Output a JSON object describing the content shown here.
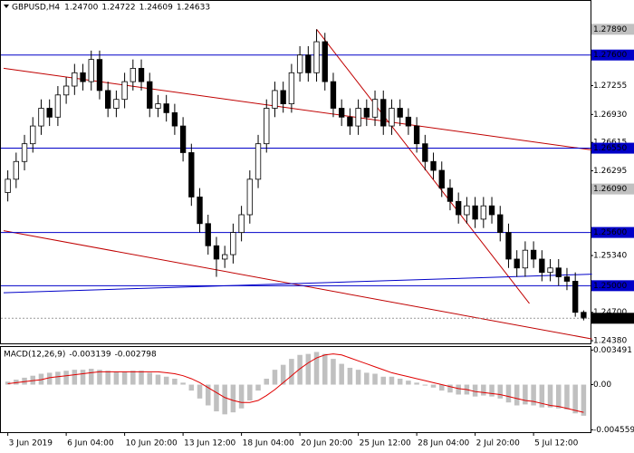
{
  "chart_data": {
    "type": "candlestick",
    "symbol": "GBPUSD,H4",
    "ohlc_labels": [
      "1.24700",
      "1.24722",
      "1.24609",
      "1.24633"
    ],
    "categories": [
      "3 Jun 2019",
      null,
      null,
      null,
      null,
      null,
      null,
      "6 Jun 04:00",
      null,
      null,
      null,
      null,
      null,
      null,
      "10 Jun 20:00",
      null,
      null,
      null,
      null,
      null,
      null,
      "13 Jun 12:00",
      null,
      null,
      null,
      null,
      null,
      null,
      "18 Jun 04:00",
      null,
      null,
      null,
      null,
      null,
      null,
      "20 Jun 20:00",
      null,
      null,
      null,
      null,
      null,
      null,
      "25 Jun 12:00",
      null,
      null,
      null,
      null,
      null,
      null,
      "28 Jun 04:00",
      null,
      null,
      null,
      null,
      null,
      null,
      "2 Jul 20:00",
      null,
      null,
      null,
      null,
      null,
      null,
      "5 Jul 12:00",
      null,
      null,
      null,
      null,
      null,
      null
    ],
    "open": [
      1.2605,
      1.262,
      1.264,
      1.266,
      1.268,
      1.27,
      1.269,
      1.2715,
      1.2725,
      1.274,
      1.273,
      1.2755,
      1.272,
      1.27,
      1.271,
      1.273,
      1.2745,
      1.273,
      1.27,
      1.2705,
      1.2695,
      1.268,
      1.265,
      1.26,
      1.257,
      1.2545,
      1.253,
      1.2535,
      1.256,
      1.258,
      1.262,
      1.266,
      1.27,
      1.272,
      1.2705,
      1.274,
      1.276,
      1.274,
      1.2775,
      1.273,
      1.27,
      1.269,
      1.268,
      1.27,
      1.269,
      1.271,
      1.268,
      1.27,
      1.269,
      1.268,
      1.266,
      1.264,
      1.263,
      1.261,
      1.2595,
      1.258,
      1.259,
      1.2575,
      1.259,
      1.258,
      1.256,
      1.253,
      1.252,
      1.254,
      1.253,
      1.2515,
      1.252,
      1.251,
      1.2505,
      1.247
    ],
    "high": [
      1.263,
      1.265,
      1.267,
      1.269,
      1.271,
      1.271,
      1.2725,
      1.2735,
      1.275,
      1.275,
      1.2765,
      1.2765,
      1.273,
      1.272,
      1.274,
      1.2755,
      1.2755,
      1.274,
      1.2715,
      1.2715,
      1.2705,
      1.269,
      1.266,
      1.261,
      1.258,
      1.2555,
      1.2545,
      1.257,
      1.259,
      1.263,
      1.267,
      1.271,
      1.273,
      1.273,
      1.275,
      1.277,
      1.277,
      1.2789,
      1.2785,
      1.274,
      1.271,
      1.27,
      1.271,
      1.271,
      1.272,
      1.272,
      1.271,
      1.271,
      1.27,
      1.269,
      1.267,
      1.265,
      1.264,
      1.262,
      1.2605,
      1.26,
      1.26,
      1.26,
      1.26,
      1.259,
      1.257,
      1.254,
      1.255,
      1.255,
      1.254,
      1.253,
      1.253,
      1.252,
      1.2515,
      1.24722
    ],
    "low": [
      1.2595,
      1.261,
      1.263,
      1.265,
      1.267,
      1.268,
      1.268,
      1.2705,
      1.2715,
      1.272,
      1.272,
      1.271,
      1.269,
      1.269,
      1.27,
      1.272,
      1.272,
      1.269,
      1.269,
      1.2685,
      1.267,
      1.264,
      1.259,
      1.256,
      1.2535,
      1.251,
      1.252,
      1.2525,
      1.255,
      1.257,
      1.261,
      1.265,
      1.269,
      1.2695,
      1.2695,
      1.273,
      1.273,
      1.273,
      1.272,
      1.269,
      1.268,
      1.267,
      1.267,
      1.268,
      1.268,
      1.267,
      1.267,
      1.268,
      1.267,
      1.265,
      1.263,
      1.262,
      1.26,
      1.2585,
      1.257,
      1.257,
      1.2565,
      1.2565,
      1.257,
      1.255,
      1.252,
      1.251,
      1.251,
      1.252,
      1.2505,
      1.2505,
      1.25,
      1.2495,
      1.2465,
      1.24609
    ],
    "close": [
      1.262,
      1.264,
      1.266,
      1.268,
      1.27,
      1.269,
      1.2715,
      1.2725,
      1.274,
      1.273,
      1.2755,
      1.272,
      1.27,
      1.271,
      1.273,
      1.2745,
      1.273,
      1.27,
      1.2705,
      1.2695,
      1.268,
      1.265,
      1.26,
      1.257,
      1.2545,
      1.253,
      1.2535,
      1.256,
      1.258,
      1.262,
      1.266,
      1.27,
      1.272,
      1.2705,
      1.274,
      1.276,
      1.274,
      1.2775,
      1.273,
      1.27,
      1.269,
      1.268,
      1.27,
      1.269,
      1.271,
      1.268,
      1.27,
      1.269,
      1.268,
      1.266,
      1.264,
      1.263,
      1.261,
      1.2595,
      1.258,
      1.259,
      1.2575,
      1.259,
      1.258,
      1.256,
      1.253,
      1.252,
      1.254,
      1.253,
      1.2515,
      1.252,
      1.251,
      1.2505,
      1.247,
      1.24633
    ],
    "ylim": [
      1.2435,
      1.2821
    ],
    "yticks": [
      {
        "value": 1.27255,
        "label": "1.27255"
      },
      {
        "value": 1.2693,
        "label": "1.26930"
      },
      {
        "value": 1.26615,
        "label": "1.26615"
      },
      {
        "value": 1.26295,
        "label": "1.26295"
      },
      {
        "value": 1.2534,
        "label": "1.25340"
      },
      {
        "value": 1.247,
        "label": "1.24700"
      },
      {
        "value": 1.2438,
        "label": "1.24380"
      }
    ],
    "levels": [
      {
        "value": 1.2789,
        "label": "1.27890",
        "color": "#c0c0c0",
        "line": false
      },
      {
        "value": 1.276,
        "label": "1.27600",
        "color": "#0000c8",
        "line": true
      },
      {
        "value": 1.2655,
        "label": "1.26550",
        "color": "#0000c8",
        "line": true
      },
      {
        "value": 1.2609,
        "label": "1.26090",
        "color": "#c0c0c0",
        "line": false
      },
      {
        "value": 1.256,
        "label": "1.25600",
        "color": "#0000c8",
        "line": true
      },
      {
        "value": 1.25,
        "label": "1.25000",
        "color": "#0000c8",
        "line": true
      }
    ],
    "trendlines": [
      {
        "color": "#c00000",
        "points": [
          [
            -0.5,
            1.2745
          ],
          [
            70,
            1.2653
          ]
        ]
      },
      {
        "color": "#c00000",
        "points": [
          [
            -0.5,
            1.2562
          ],
          [
            70,
            1.244
          ]
        ]
      },
      {
        "color": "#c00000",
        "points": [
          [
            37,
            1.2789
          ],
          [
            62.5,
            1.248
          ]
        ]
      },
      {
        "color": "#0000c8",
        "points": [
          [
            -0.5,
            1.2492
          ],
          [
            70,
            1.2513
          ]
        ]
      }
    ],
    "macd": {
      "title": "MACD(12,26,9)",
      "histogram_color": "#c0c0c0",
      "signal_color": "#e00000",
      "ylim": [
        -0.0048,
        0.0038
      ],
      "yticks": [
        {
          "value": 0.003491,
          "label": "0.003491"
        },
        {
          "value": 0,
          "label": "0.00"
        },
        {
          "value": -0.004559,
          "label": "-0.004559"
        }
      ],
      "histogram": [
        0.0003,
        0.0005,
        0.0007,
        0.0009,
        0.0011,
        0.0012,
        0.0013,
        0.0014,
        0.0015,
        0.0015,
        0.0016,
        0.0015,
        0.0014,
        0.0013,
        0.0013,
        0.0014,
        0.0014,
        0.0012,
        0.001,
        0.0008,
        0.0006,
        0.0002,
        -0.0006,
        -0.0014,
        -0.0021,
        -0.0027,
        -0.003,
        -0.0028,
        -0.0024,
        -0.0016,
        -0.0006,
        0.0006,
        0.0015,
        0.002,
        0.0026,
        0.003,
        0.0031,
        0.0033,
        0.0031,
        0.0026,
        0.0021,
        0.0017,
        0.0015,
        0.0012,
        0.0011,
        0.0008,
        0.0008,
        0.0006,
        0.0004,
        0.0002,
        -0.0001,
        -0.0003,
        -0.0006,
        -0.0008,
        -0.001,
        -0.001,
        -0.0012,
        -0.0011,
        -0.0012,
        -0.0014,
        -0.0018,
        -0.0021,
        -0.002,
        -0.0021,
        -0.0023,
        -0.0023,
        -0.0024,
        -0.0025,
        -0.0029,
        -0.003139
      ],
      "signal": [
        0.0001,
        0.0002,
        0.0003,
        0.0004,
        0.0005,
        0.0007,
        0.0008,
        0.0009,
        0.001,
        0.0011,
        0.0012,
        0.0013,
        0.0013,
        0.0013,
        0.0013,
        0.0013,
        0.0013,
        0.0013,
        0.0013,
        0.0012,
        0.0011,
        0.0009,
        0.0006,
        0.0002,
        -0.0003,
        -0.0008,
        -0.0013,
        -0.0016,
        -0.0018,
        -0.0018,
        -0.0016,
        -0.0011,
        -0.0005,
        0.0002,
        0.0009,
        0.0016,
        0.0022,
        0.0027,
        0.003,
        0.0031,
        0.003,
        0.0027,
        0.0024,
        0.0021,
        0.0018,
        0.0015,
        0.0012,
        0.001,
        0.0008,
        0.0006,
        0.0004,
        0.0002,
        0.0,
        -0.0002,
        -0.0004,
        -0.0005,
        -0.0007,
        -0.0008,
        -0.0009,
        -0.001,
        -0.0012,
        -0.0014,
        -0.0016,
        -0.0017,
        -0.0019,
        -0.0021,
        -0.0022,
        -0.0024,
        -0.0026,
        -0.002798
      ]
    }
  }
}
